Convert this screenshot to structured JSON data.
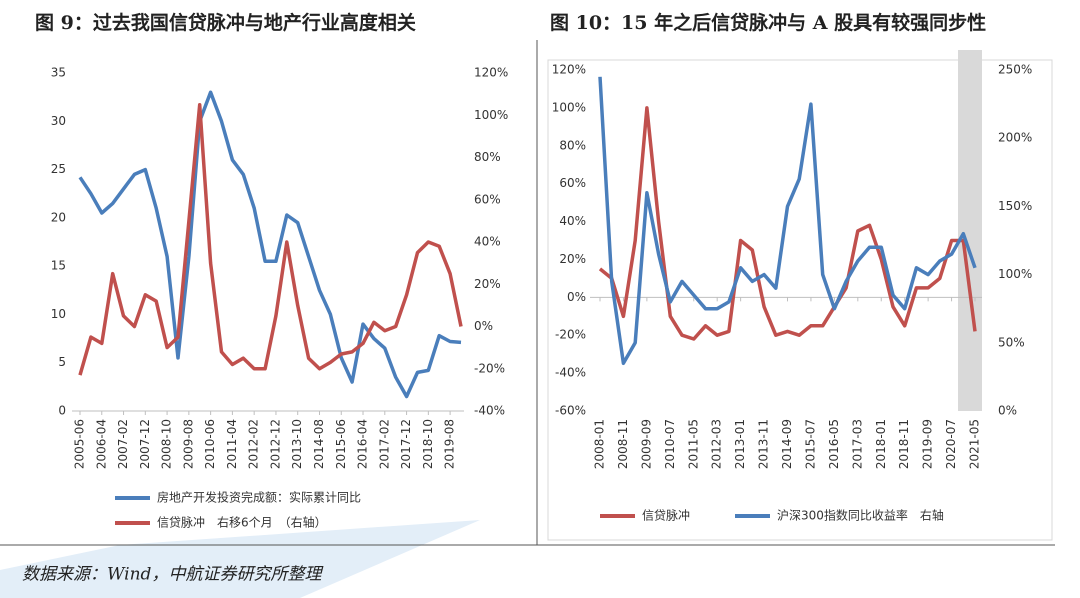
{
  "chart_data": [
    {
      "type": "line",
      "title": "图 9：过去我国信贷脉冲与地产行业高度相关",
      "categories": [
        "2005-06",
        null,
        "2006-04",
        null,
        "2007-02",
        null,
        "2007-12",
        null,
        "2008-10",
        null,
        "2009-08",
        null,
        "2010-06",
        null,
        "2011-04",
        null,
        "2012-02",
        null,
        "2012-12",
        null,
        "2013-10",
        null,
        "2014-08",
        null,
        "2015-06",
        null,
        "2016-04",
        null,
        "2017-02",
        null,
        "2017-12",
        null,
        "2018-10",
        null,
        "2019-08",
        null
      ],
      "ylim": [
        0,
        35
      ],
      "yticks": [
        0,
        5,
        10,
        15,
        20,
        25,
        30,
        35
      ],
      "y2lim": [
        -40,
        120
      ],
      "y2ticks": [
        {
          "value": -40,
          "label": "-40%"
        },
        {
          "value": -20,
          "label": "-20%"
        },
        {
          "value": 0,
          "label": "0%"
        },
        {
          "value": 20,
          "label": "20%"
        },
        {
          "value": 40,
          "label": "40%"
        },
        {
          "value": 60,
          "label": "60%"
        },
        {
          "value": 80,
          "label": "80%"
        },
        {
          "value": 100,
          "label": "100%"
        },
        {
          "value": 120,
          "label": "120%"
        }
      ],
      "legend": "bottom",
      "series": [
        {
          "name": "房地产开发投资完成额：实际累计同比",
          "color": "#4a7ebb",
          "values": [
            24.2,
            22.5,
            20.5,
            21.5,
            23,
            24.5,
            25,
            21,
            16,
            5.5,
            16,
            30,
            33,
            30,
            26,
            24.5,
            21,
            15.5,
            15.5,
            20.3,
            19.5,
            16,
            12.5,
            10,
            5.5,
            3,
            9,
            7.5,
            6.5,
            3.5,
            1.5,
            4,
            4.2,
            7.8,
            7.2,
            7.1
          ]
        },
        {
          "name": "信贷脉冲　右移6个月　（右轴）",
          "color": "#c0504d",
          "axis": "y2",
          "values": [
            -23,
            -5,
            -8,
            25,
            5,
            0,
            15,
            12,
            -10,
            -5,
            50,
            105,
            30,
            -12,
            -18,
            -15,
            -20,
            -20,
            5,
            40,
            10,
            -15,
            -20,
            -17,
            -13,
            -12,
            -8,
            2,
            -2,
            0,
            15,
            35,
            40,
            38,
            25,
            0
          ]
        }
      ]
    },
    {
      "type": "line",
      "title": "图 10：15 年之后信贷脉冲与 A 股具有较强同步性",
      "categories": [
        "2008-01",
        null,
        "2008-11",
        null,
        "2009-09",
        null,
        "2010-07",
        null,
        "2011-05",
        null,
        "2012-03",
        null,
        "2013-01",
        null,
        "2013-11",
        null,
        "2014-09",
        null,
        "2015-07",
        null,
        "2016-05",
        null,
        "2017-03",
        null,
        "2018-01",
        null,
        "2018-11",
        null,
        "2019-09",
        null,
        "2020-07",
        null,
        "2021-05"
      ],
      "ylim": [
        -60,
        120
      ],
      "yticks": [
        {
          "value": -60,
          "label": "-60%"
        },
        {
          "value": -40,
          "label": "-40%"
        },
        {
          "value": -20,
          "label": "-20%"
        },
        {
          "value": 0,
          "label": "0%"
        },
        {
          "value": 20,
          "label": "20%"
        },
        {
          "value": 40,
          "label": "40%"
        },
        {
          "value": 60,
          "label": "60%"
        },
        {
          "value": 80,
          "label": "80%"
        },
        {
          "value": 100,
          "label": "100%"
        },
        {
          "value": 120,
          "label": "120%"
        }
      ],
      "y2lim": [
        0,
        250
      ],
      "y2ticks": [
        {
          "value": 0,
          "label": "0%"
        },
        {
          "value": 50,
          "label": "50%"
        },
        {
          "value": 100,
          "label": "100%"
        },
        {
          "value": 150,
          "label": "150%"
        },
        {
          "value": 200,
          "label": "200%"
        },
        {
          "value": 250,
          "label": "250%"
        }
      ],
      "legend": "bottom",
      "series": [
        {
          "name": "信贷脉冲",
          "color": "#c0504d",
          "values": [
            15,
            10,
            -10,
            30,
            100,
            40,
            -10,
            -20,
            -22,
            -15,
            -20,
            -18,
            30,
            25,
            -5,
            -20,
            -18,
            -20,
            -15,
            -15,
            -5,
            5,
            35,
            38,
            20,
            -5,
            -15,
            5,
            5,
            10,
            30,
            30,
            -18
          ]
        },
        {
          "name": "沪深300指数同比收益率　右轴",
          "color": "#4a7ebb",
          "axis": "y2",
          "values": [
            245,
            95,
            35,
            50,
            160,
            115,
            80,
            95,
            85,
            75,
            75,
            80,
            105,
            95,
            100,
            90,
            150,
            170,
            225,
            100,
            75,
            95,
            110,
            120,
            120,
            85,
            75,
            105,
            100,
            110,
            115,
            130,
            105
          ]
        }
      ]
    }
  ],
  "source": "数据来源：Wind，中航证券研究所整理"
}
